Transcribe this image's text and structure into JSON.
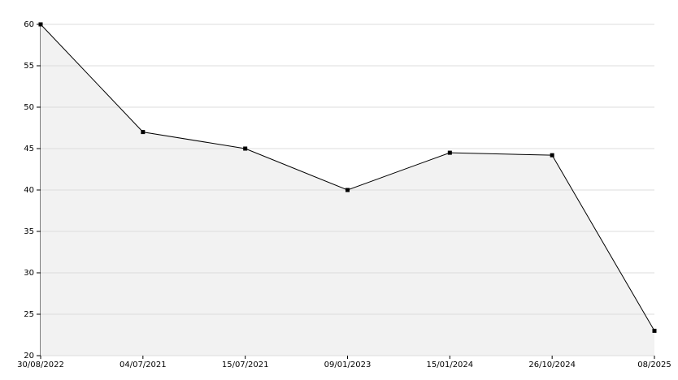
{
  "chart_data": {
    "type": "area",
    "categories": [
      "30/08/2022",
      "04/07/2021",
      "15/07/2021",
      "09/01/2023",
      "15/01/2024",
      "26/10/2024",
      "08/2025"
    ],
    "values": [
      60,
      47,
      45,
      40,
      44.5,
      44.2,
      23
    ],
    "color": "#000000",
    "fill": "#f2f2f2",
    "ylim": [
      20,
      60
    ],
    "yticks": [
      20,
      25,
      30,
      35,
      40,
      45,
      50,
      55,
      60
    ],
    "grid": true
  }
}
